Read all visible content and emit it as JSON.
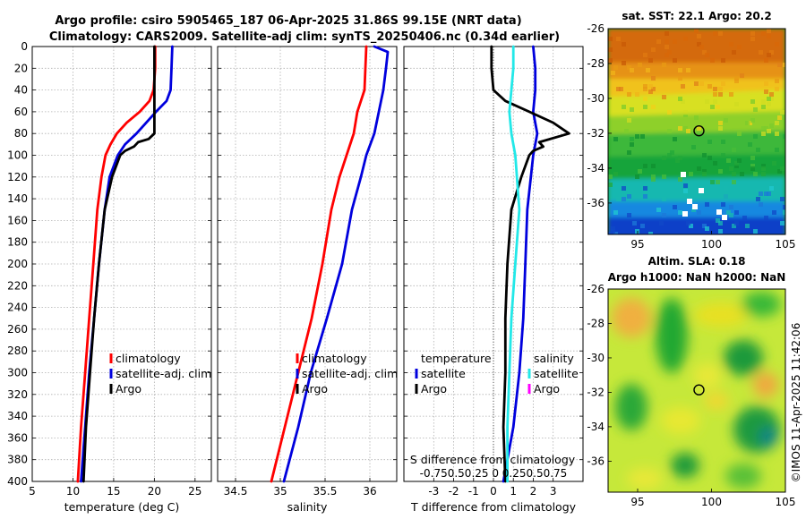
{
  "title_line1": "Argo profile: csiro 5905465_187 06-Apr-2025 31.86S 99.15E (NRT data)",
  "title_line2": "Climatology: CARS2009. Satellite-adj clim: synTS_20250406.nc (0.34d earlier)",
  "watermark": "©IMOS 11-Apr-2025 11:42:06",
  "colors": {
    "climatology": "#ff0000",
    "satellite": "#0000dd",
    "argo": "#000000",
    "salinity_satellite": "#22e8e8",
    "salinity_argo": "#ff00ff"
  },
  "chart_data": [
    {
      "id": "temperature",
      "type": "line",
      "xlabel": "temperature (deg C)",
      "ylabel": "",
      "xlim": [
        5,
        27
      ],
      "ylim": [
        400,
        0
      ],
      "xticks": [
        "5",
        "10",
        "15",
        "20",
        "25"
      ],
      "xtick_values": [
        5,
        10,
        15,
        20,
        25
      ],
      "yticks": [
        "0",
        "20",
        "40",
        "60",
        "80",
        "100",
        "120",
        "140",
        "160",
        "180",
        "200",
        "220",
        "240",
        "260",
        "280",
        "300",
        "320",
        "340",
        "360",
        "380",
        "400"
      ],
      "grid": true,
      "legend": [
        "climatology",
        "satellite-adj. clim",
        "Argo"
      ],
      "series": [
        {
          "name": "climatology",
          "color": "#ff0000",
          "points": [
            [
              20.1,
              0
            ],
            [
              20.1,
              20
            ],
            [
              19.9,
              40
            ],
            [
              19.4,
              50
            ],
            [
              18.2,
              60
            ],
            [
              16.6,
              70
            ],
            [
              15.4,
              80
            ],
            [
              14.6,
              90
            ],
            [
              14.0,
              100
            ],
            [
              13.5,
              120
            ],
            [
              13.0,
              150
            ],
            [
              12.5,
              200
            ],
            [
              12.0,
              250
            ],
            [
              11.5,
              300
            ],
            [
              11.0,
              350
            ],
            [
              10.6,
              400
            ]
          ]
        },
        {
          "name": "satellite-adj. clim",
          "color": "#0000dd",
          "points": [
            [
              22.2,
              0
            ],
            [
              22.1,
              20
            ],
            [
              22.0,
              40
            ],
            [
              21.5,
              50
            ],
            [
              20.2,
              60
            ],
            [
              19.0,
              70
            ],
            [
              17.8,
              80
            ],
            [
              16.4,
              90
            ],
            [
              15.5,
              100
            ],
            [
              14.5,
              120
            ],
            [
              13.9,
              150
            ],
            [
              13.2,
              200
            ],
            [
              12.6,
              250
            ],
            [
              12.0,
              300
            ],
            [
              11.5,
              350
            ],
            [
              11.0,
              400
            ]
          ]
        },
        {
          "name": "Argo",
          "color": "#000000",
          "points": [
            [
              20.0,
              0
            ],
            [
              20.0,
              20
            ],
            [
              20.0,
              40
            ],
            [
              20.0,
              60
            ],
            [
              20.0,
              80
            ],
            [
              19.3,
              85
            ],
            [
              18.0,
              88
            ],
            [
              17.5,
              92
            ],
            [
              16.4,
              96
            ],
            [
              15.8,
              100
            ],
            [
              14.8,
              120
            ],
            [
              13.9,
              150
            ],
            [
              13.2,
              200
            ],
            [
              12.6,
              250
            ],
            [
              12.1,
              300
            ],
            [
              11.6,
              350
            ],
            [
              11.3,
              400
            ]
          ]
        }
      ]
    },
    {
      "id": "salinity",
      "type": "line",
      "xlabel": "salinity",
      "ylabel": "",
      "xlim": [
        34.3,
        36.3
      ],
      "ylim": [
        400,
        0
      ],
      "xticks": [
        "34.5",
        "35",
        "35.5",
        "36"
      ],
      "xtick_values": [
        34.5,
        35,
        35.5,
        36
      ],
      "grid": true,
      "legend": [
        "climatology",
        "satellite-adj. clim",
        "Argo"
      ],
      "series": [
        {
          "name": "climatology",
          "color": "#ff0000",
          "points": [
            [
              35.96,
              0
            ],
            [
              35.95,
              20
            ],
            [
              35.94,
              40
            ],
            [
              35.9,
              50
            ],
            [
              35.86,
              60
            ],
            [
              35.82,
              80
            ],
            [
              35.74,
              100
            ],
            [
              35.66,
              120
            ],
            [
              35.57,
              150
            ],
            [
              35.47,
              200
            ],
            [
              35.35,
              250
            ],
            [
              35.2,
              300
            ],
            [
              35.05,
              350
            ],
            [
              34.9,
              400
            ]
          ]
        },
        {
          "name": "satellite-adj. clim",
          "color": "#0000dd",
          "points": [
            [
              36.05,
              0
            ],
            [
              36.2,
              5
            ],
            [
              36.18,
              20
            ],
            [
              36.15,
              40
            ],
            [
              36.1,
              60
            ],
            [
              36.05,
              80
            ],
            [
              35.96,
              100
            ],
            [
              35.9,
              120
            ],
            [
              35.8,
              150
            ],
            [
              35.69,
              200
            ],
            [
              35.52,
              250
            ],
            [
              35.34,
              300
            ],
            [
              35.2,
              350
            ],
            [
              35.04,
              400
            ]
          ]
        }
      ]
    },
    {
      "id": "difference",
      "type": "line",
      "xlabel": "T difference from climatology",
      "ylabel": "",
      "xlim": [
        -4.5,
        4.5
      ],
      "ylim": [
        400,
        0
      ],
      "xticks": [
        "-3",
        "-2",
        "-1",
        "0",
        "1",
        "2",
        "3"
      ],
      "xtick_values": [
        -3,
        -2,
        -1,
        0,
        1,
        2,
        3
      ],
      "top_label": "S difference from climatology",
      "top_ticks": "-0.750.50.25 0 0.250.50.75",
      "grid": true,
      "legend_temperature_title": "temperature",
      "legend_temperature": [
        "satellite",
        "Argo"
      ],
      "legend_salinity_title": "salinity",
      "legend_salinity": [
        "satellite",
        "Argo"
      ],
      "series": [
        {
          "name": "temperature satellite",
          "color": "#0000dd",
          "points": [
            [
              2.0,
              0
            ],
            [
              2.1,
              20
            ],
            [
              2.1,
              40
            ],
            [
              2.0,
              60
            ],
            [
              2.2,
              80
            ],
            [
              2.0,
              100
            ],
            [
              1.7,
              150
            ],
            [
              1.6,
              200
            ],
            [
              1.5,
              250
            ],
            [
              1.3,
              300
            ],
            [
              1.0,
              350
            ],
            [
              0.5,
              400
            ]
          ]
        },
        {
          "name": "temperature Argo",
          "color": "#000000",
          "points": [
            [
              -0.1,
              0
            ],
            [
              -0.1,
              20
            ],
            [
              0.0,
              40
            ],
            [
              0.6,
              50
            ],
            [
              1.8,
              60
            ],
            [
              3.0,
              70
            ],
            [
              3.8,
              80
            ],
            [
              2.3,
              88
            ],
            [
              2.5,
              92
            ],
            [
              2.0,
              96
            ],
            [
              1.8,
              100
            ],
            [
              1.4,
              120
            ],
            [
              0.9,
              150
            ],
            [
              0.7,
              200
            ],
            [
              0.6,
              250
            ],
            [
              0.6,
              300
            ],
            [
              0.5,
              350
            ],
            [
              0.6,
              400
            ]
          ]
        },
        {
          "name": "salinity satellite",
          "color": "#22e8e8",
          "points": [
            [
              1.0,
              0
            ],
            [
              1.0,
              20
            ],
            [
              0.9,
              40
            ],
            [
              0.8,
              60
            ],
            [
              0.9,
              80
            ],
            [
              1.1,
              100
            ],
            [
              1.3,
              150
            ],
            [
              1.1,
              200
            ],
            [
              0.9,
              250
            ],
            [
              0.8,
              300
            ],
            [
              0.7,
              350
            ],
            [
              0.7,
              400
            ]
          ]
        }
      ]
    },
    {
      "id": "sst_map",
      "type": "heatmap",
      "title": "sat. SST: 22.1 Argo: 20.2",
      "xticks": [
        "95",
        "100",
        "105"
      ],
      "xtick_values": [
        95,
        100,
        105
      ],
      "yticks": [
        "-26",
        "-28",
        "-30",
        "-32",
        "-34",
        "-36"
      ],
      "ytick_values": [
        -26,
        -28,
        -30,
        -32,
        -34,
        -36
      ],
      "xlim": [
        93,
        105
      ],
      "ylim": [
        -37.8,
        -26
      ],
      "marker": [
        99.15,
        -31.86
      ]
    },
    {
      "id": "sla_map",
      "type": "heatmap",
      "title_line1": "Altim. SLA: 0.18",
      "title_line2": "Argo h1000: NaN h2000: NaN",
      "xticks": [
        "95",
        "100",
        "105"
      ],
      "xtick_values": [
        95,
        100,
        105
      ],
      "yticks": [
        "-26",
        "-28",
        "-30",
        "-32",
        "-34",
        "-36"
      ],
      "ytick_values": [
        -26,
        -28,
        -30,
        -32,
        -34,
        -36
      ],
      "xlim": [
        93,
        105
      ],
      "ylim": [
        -37.8,
        -26
      ],
      "marker": [
        99.15,
        -31.86
      ]
    }
  ]
}
